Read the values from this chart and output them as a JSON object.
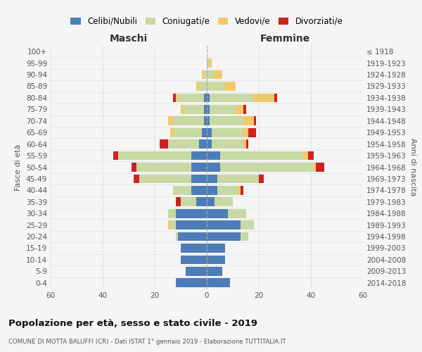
{
  "age_groups": [
    "0-4",
    "5-9",
    "10-14",
    "15-19",
    "20-24",
    "25-29",
    "30-34",
    "35-39",
    "40-44",
    "45-49",
    "50-54",
    "55-59",
    "60-64",
    "65-69",
    "70-74",
    "75-79",
    "80-84",
    "85-89",
    "90-94",
    "95-99",
    "100+"
  ],
  "birth_years": [
    "2014-2018",
    "2009-2013",
    "2004-2008",
    "1999-2003",
    "1994-1998",
    "1989-1993",
    "1984-1988",
    "1979-1983",
    "1974-1978",
    "1969-1973",
    "1964-1968",
    "1959-1963",
    "1954-1958",
    "1949-1953",
    "1944-1948",
    "1939-1943",
    "1934-1938",
    "1929-1933",
    "1924-1928",
    "1919-1923",
    "≤ 1918"
  ],
  "colors": {
    "celibi": "#4d7db8",
    "coniugati": "#c8d9a3",
    "vedovi": "#f2c96a",
    "divorziati": "#cc2222"
  },
  "male": {
    "celibi": [
      12,
      8,
      10,
      10,
      11,
      12,
      12,
      4,
      6,
      6,
      6,
      6,
      3,
      2,
      1,
      1,
      1,
      0,
      0,
      0,
      0
    ],
    "coniugati": [
      0,
      0,
      0,
      0,
      1,
      2,
      3,
      6,
      7,
      20,
      21,
      28,
      12,
      11,
      12,
      8,
      10,
      3,
      1,
      0,
      0
    ],
    "vedovi": [
      0,
      0,
      0,
      0,
      0,
      1,
      0,
      0,
      0,
      0,
      0,
      0,
      0,
      1,
      2,
      1,
      1,
      1,
      1,
      0,
      0
    ],
    "divorziati": [
      0,
      0,
      0,
      0,
      0,
      0,
      0,
      2,
      0,
      2,
      2,
      2,
      3,
      0,
      0,
      0,
      1,
      0,
      0,
      0,
      0
    ]
  },
  "female": {
    "celibi": [
      9,
      6,
      7,
      7,
      13,
      13,
      8,
      3,
      4,
      4,
      5,
      5,
      2,
      2,
      1,
      1,
      1,
      0,
      0,
      0,
      0
    ],
    "coniugati": [
      0,
      0,
      0,
      0,
      3,
      5,
      7,
      7,
      8,
      16,
      36,
      32,
      12,
      12,
      13,
      10,
      17,
      7,
      3,
      1,
      0
    ],
    "vedovi": [
      0,
      0,
      0,
      0,
      0,
      0,
      0,
      0,
      1,
      0,
      1,
      2,
      1,
      2,
      4,
      3,
      8,
      4,
      3,
      1,
      0
    ],
    "divorziati": [
      0,
      0,
      0,
      0,
      0,
      0,
      0,
      0,
      1,
      2,
      3,
      2,
      1,
      3,
      1,
      1,
      1,
      0,
      0,
      0,
      0
    ]
  },
  "title": "Popolazione per età, sesso e stato civile - 2019",
  "subtitle": "COMUNE DI MOTTA BALUFFI (CR) - Dati ISTAT 1° gennaio 2019 - Elaborazione TUTTITALIA.IT",
  "ylabel_left": "Fasce di età",
  "ylabel_right": "Anni di nascita",
  "xlabel_left": "Maschi",
  "xlabel_right": "Femmine",
  "xlim": 60,
  "legend_labels": [
    "Celibi/Nubili",
    "Coniugati/e",
    "Vedovi/e",
    "Divorziati/e"
  ],
  "background_color": "#f5f5f5"
}
